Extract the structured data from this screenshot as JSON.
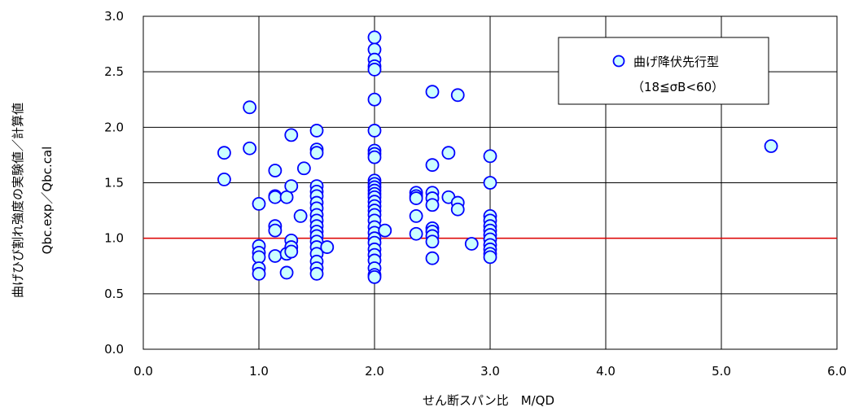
{
  "chart_data": {
    "type": "scatter",
    "xlabel": "せん断スパン比　M/QD",
    "ylabel_line1": "曲げひび割れ強度の実験値／計算値",
    "ylabel_line2": "Qbc.exp／Qbc.cal",
    "xlim": [
      0.0,
      6.0
    ],
    "ylim": [
      0.0,
      3.0
    ],
    "x_ticks": [
      "0.0",
      "1.0",
      "2.0",
      "3.0",
      "4.0",
      "5.0",
      "6.0"
    ],
    "y_ticks": [
      "0.0",
      "0.5",
      "1.0",
      "1.5",
      "2.0",
      "2.5",
      "3.0"
    ],
    "grid": true,
    "legend_position": "top-right",
    "reference_line": {
      "y": 1.0,
      "color": "#e00000"
    },
    "series": [
      {
        "name": "曲げ降伏先行型",
        "sub_label": "（18≦σB<60）",
        "marker_fill": "#ccffff",
        "marker_edge": "#0000ff",
        "points": [
          [
            0.7,
            1.77
          ],
          [
            0.7,
            1.53
          ],
          [
            0.92,
            1.81
          ],
          [
            0.92,
            2.18
          ],
          [
            1.0,
            1.31
          ],
          [
            1.0,
            0.93
          ],
          [
            1.0,
            0.87
          ],
          [
            1.0,
            0.83
          ],
          [
            1.0,
            0.73
          ],
          [
            1.0,
            0.68
          ],
          [
            1.14,
            1.61
          ],
          [
            1.14,
            1.38
          ],
          [
            1.14,
            1.37
          ],
          [
            1.14,
            1.11
          ],
          [
            1.14,
            1.07
          ],
          [
            1.14,
            0.84
          ],
          [
            1.24,
            1.37
          ],
          [
            1.24,
            0.86
          ],
          [
            1.24,
            0.69
          ],
          [
            1.28,
            1.93
          ],
          [
            1.28,
            1.47
          ],
          [
            1.28,
            0.98
          ],
          [
            1.28,
            0.92
          ],
          [
            1.28,
            0.88
          ],
          [
            1.36,
            1.2
          ],
          [
            1.39,
            1.63
          ],
          [
            1.5,
            1.97
          ],
          [
            1.5,
            1.8
          ],
          [
            1.5,
            1.77
          ],
          [
            1.5,
            1.47
          ],
          [
            1.5,
            1.42
          ],
          [
            1.5,
            1.38
          ],
          [
            1.5,
            1.32
          ],
          [
            1.5,
            1.27
          ],
          [
            1.5,
            1.21
          ],
          [
            1.5,
            1.16
          ],
          [
            1.5,
            1.11
          ],
          [
            1.5,
            1.06
          ],
          [
            1.5,
            1.02
          ],
          [
            1.5,
            0.97
          ],
          [
            1.5,
            0.92
          ],
          [
            1.5,
            0.86
          ],
          [
            1.5,
            0.79
          ],
          [
            1.5,
            0.73
          ],
          [
            1.5,
            0.68
          ],
          [
            1.59,
            0.92
          ],
          [
            2.0,
            2.81
          ],
          [
            2.0,
            2.7
          ],
          [
            2.0,
            2.61
          ],
          [
            2.0,
            2.55
          ],
          [
            2.0,
            2.52
          ],
          [
            2.0,
            2.25
          ],
          [
            2.0,
            1.97
          ],
          [
            2.0,
            1.79
          ],
          [
            2.0,
            1.76
          ],
          [
            2.0,
            1.73
          ],
          [
            2.0,
            1.52
          ],
          [
            2.0,
            1.49
          ],
          [
            2.0,
            1.46
          ],
          [
            2.0,
            1.43
          ],
          [
            2.0,
            1.4
          ],
          [
            2.0,
            1.37
          ],
          [
            2.0,
            1.33
          ],
          [
            2.0,
            1.29
          ],
          [
            2.0,
            1.25
          ],
          [
            2.0,
            1.21
          ],
          [
            2.0,
            1.16
          ],
          [
            2.0,
            1.1
          ],
          [
            2.0,
            1.05
          ],
          [
            2.0,
            1.0
          ],
          [
            2.0,
            0.96
          ],
          [
            2.0,
            0.9
          ],
          [
            2.0,
            0.85
          ],
          [
            2.0,
            0.8
          ],
          [
            2.0,
            0.73
          ],
          [
            2.0,
            0.67
          ],
          [
            2.0,
            0.65
          ],
          [
            2.09,
            1.07
          ],
          [
            2.36,
            1.41
          ],
          [
            2.36,
            1.38
          ],
          [
            2.36,
            1.36
          ],
          [
            2.36,
            1.2
          ],
          [
            2.36,
            1.04
          ],
          [
            2.5,
            2.32
          ],
          [
            2.5,
            1.66
          ],
          [
            2.5,
            1.41
          ],
          [
            2.5,
            1.36
          ],
          [
            2.5,
            1.3
          ],
          [
            2.5,
            1.09
          ],
          [
            2.5,
            1.06
          ],
          [
            2.5,
            1.02
          ],
          [
            2.5,
            0.97
          ],
          [
            2.5,
            0.82
          ],
          [
            2.64,
            1.77
          ],
          [
            2.64,
            1.37
          ],
          [
            2.72,
            2.29
          ],
          [
            2.72,
            1.32
          ],
          [
            2.72,
            1.26
          ],
          [
            2.84,
            0.95
          ],
          [
            3.0,
            1.74
          ],
          [
            3.0,
            1.5
          ],
          [
            3.0,
            1.2
          ],
          [
            3.0,
            1.16
          ],
          [
            3.0,
            1.11
          ],
          [
            3.0,
            1.07
          ],
          [
            3.0,
            1.03
          ],
          [
            3.0,
            0.99
          ],
          [
            3.0,
            0.94
          ],
          [
            3.0,
            0.9
          ],
          [
            3.0,
            0.86
          ],
          [
            3.0,
            0.83
          ],
          [
            5.43,
            1.83
          ]
        ]
      }
    ]
  }
}
